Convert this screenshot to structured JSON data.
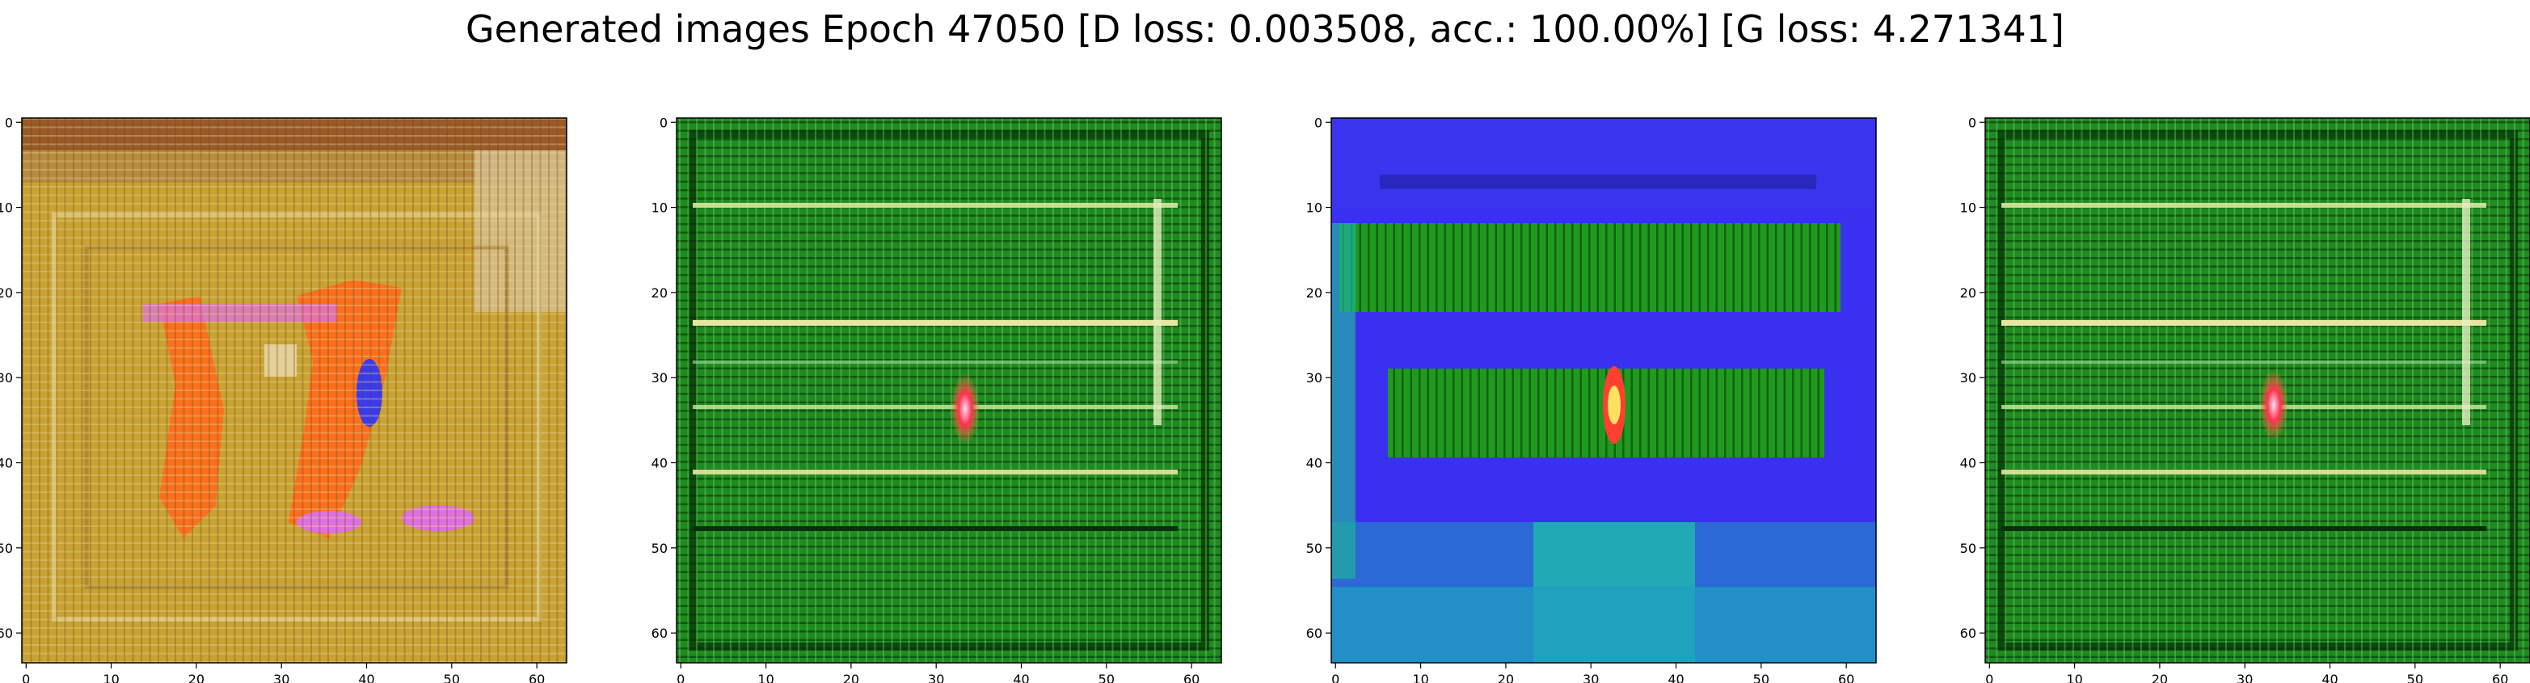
{
  "title": "Generated images Epoch 47050 [D loss: 0.003508, acc.: 100.00%] [G loss: 4.271341]",
  "chart_data": [
    {
      "type": "heatmap",
      "panel": 1,
      "dominant_colors": [
        "#c9a233",
        "#ff6a1a",
        "#e070e0",
        "#3a3af0",
        "#7a5a2a"
      ],
      "xlim": [
        0,
        63
      ],
      "ylim": [
        63,
        0
      ],
      "x_ticks": [
        0,
        10,
        20,
        30,
        40,
        50,
        60
      ],
      "y_ticks": [
        0,
        10,
        20,
        30,
        40,
        50,
        60
      ],
      "grid": false
    },
    {
      "type": "heatmap",
      "panel": 2,
      "dominant_colors": [
        "#1f8a1f",
        "#0a4a0a",
        "#e6e6a0",
        "#ff4060"
      ],
      "xlim": [
        0,
        63
      ],
      "ylim": [
        63,
        0
      ],
      "x_ticks": [
        0,
        10,
        20,
        30,
        40,
        50,
        60
      ],
      "y_ticks": [
        0,
        10,
        20,
        30,
        40,
        50,
        60
      ],
      "grid": false
    },
    {
      "type": "heatmap",
      "panel": 3,
      "dominant_colors": [
        "#3a30f0",
        "#1f9a1f",
        "#20b0b0",
        "#ff4030"
      ],
      "xlim": [
        0,
        63
      ],
      "ylim": [
        63,
        0
      ],
      "x_ticks": [
        0,
        10,
        20,
        30,
        40,
        50,
        60
      ],
      "y_ticks": [
        0,
        10,
        20,
        30,
        40,
        50,
        60
      ],
      "grid": false
    },
    {
      "type": "heatmap",
      "panel": 4,
      "dominant_colors": [
        "#1f8a1f",
        "#0a4a0a",
        "#e6e6a0",
        "#ff4060"
      ],
      "xlim": [
        0,
        63
      ],
      "ylim": [
        63,
        0
      ],
      "x_ticks": [
        0,
        10,
        20,
        30,
        40,
        50,
        60
      ],
      "y_ticks": [
        0,
        10,
        20,
        30,
        40,
        50,
        60
      ],
      "grid": false
    }
  ]
}
